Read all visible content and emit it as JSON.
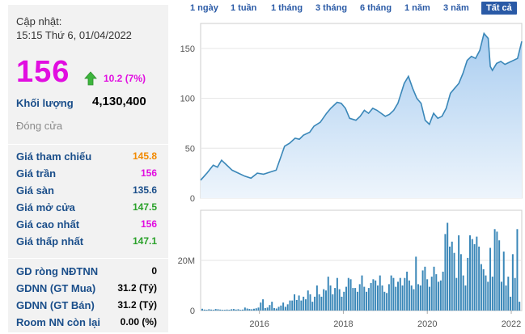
{
  "info": {
    "update_label": "Cập nhật:",
    "update_time": "15:15 Thứ 6, 01/04/2022",
    "price": "156",
    "change": "10.2 (7%)",
    "volume_label": "Khối lượng",
    "volume_value": "4,130,400",
    "status": "Đóng cửa"
  },
  "prices": [
    {
      "label": "Giá tham chiếu",
      "value": "145.8",
      "color": "#f28a00"
    },
    {
      "label": "Giá trần",
      "value": "156",
      "color": "#e10ee0"
    },
    {
      "label": "Giá sàn",
      "value": "135.6",
      "color": "#1a4e8a"
    },
    {
      "label": "Giá mở cửa",
      "value": "147.5",
      "color": "#2aa12a"
    },
    {
      "label": "Giá cao nhất",
      "value": "156",
      "color": "#e10ee0"
    },
    {
      "label": "Giá thấp nhất",
      "value": "147.1",
      "color": "#2aa12a"
    }
  ],
  "foreign": [
    {
      "label": "GD ròng NĐTNN",
      "value": "0"
    },
    {
      "label": "GDNN (GT Mua)",
      "value": "31.2 (Tỷ)"
    },
    {
      "label": "GDNN (GT Bán)",
      "value": "31.2 (Tỷ)"
    },
    {
      "label": "Room NN còn lại",
      "value": "0.00 (%)"
    }
  ],
  "ranges": [
    "1 ngày",
    "1 tuần",
    "1 tháng",
    "3 tháng",
    "6 tháng",
    "1 năm",
    "3 năm",
    "Tất cả"
  ],
  "active_range": "Tất cả",
  "chart_data": [
    {
      "type": "area",
      "name": "price",
      "x_range": [
        2014.6,
        2022.25
      ],
      "ylim": [
        0,
        175
      ],
      "yticks": [
        0,
        50,
        100,
        150
      ],
      "color": "#3a87b8",
      "x": [
        2014.6,
        2014.75,
        2014.9,
        2015.0,
        2015.1,
        2015.2,
        2015.35,
        2015.5,
        2015.65,
        2015.8,
        2015.95,
        2016.1,
        2016.25,
        2016.4,
        2016.5,
        2016.6,
        2016.72,
        2016.85,
        2016.95,
        2017.05,
        2017.2,
        2017.3,
        2017.45,
        2017.6,
        2017.7,
        2017.85,
        2017.95,
        2018.05,
        2018.15,
        2018.3,
        2018.4,
        2018.5,
        2018.6,
        2018.7,
        2018.8,
        2018.9,
        2019.0,
        2019.1,
        2019.2,
        2019.3,
        2019.45,
        2019.55,
        2019.65,
        2019.75,
        2019.85,
        2019.95,
        2020.05,
        2020.15,
        2020.25,
        2020.35,
        2020.45,
        2020.55,
        2020.65,
        2020.75,
        2020.85,
        2020.95,
        2021.05,
        2021.15,
        2021.25,
        2021.35,
        2021.45,
        2021.5,
        2021.55,
        2021.65,
        2021.75,
        2021.85,
        2021.95,
        2022.05,
        2022.15,
        2022.25
      ],
      "y": [
        18,
        25,
        33,
        31,
        38,
        34,
        28,
        25,
        22,
        20,
        25,
        24,
        26,
        28,
        40,
        52,
        55,
        60,
        59,
        63,
        66,
        72,
        76,
        85,
        90,
        96,
        95,
        90,
        80,
        78,
        82,
        88,
        85,
        90,
        88,
        85,
        82,
        84,
        88,
        95,
        115,
        122,
        110,
        100,
        95,
        78,
        74,
        85,
        80,
        82,
        90,
        105,
        110,
        115,
        125,
        138,
        142,
        140,
        148,
        165,
        160,
        132,
        128,
        135,
        137,
        134,
        136,
        138,
        140,
        157
      ]
    },
    {
      "type": "bar",
      "name": "volume",
      "x_range": [
        2014.6,
        2022.25
      ],
      "ylim": [
        0,
        40
      ],
      "yticks": [
        0,
        20
      ],
      "ytick_labels": [
        "0",
        "20M"
      ],
      "xticks": [
        2016,
        2018,
        2020,
        2022
      ],
      "color": "#3a87b8",
      "values": [
        0.7,
        0.4,
        0.3,
        0.5,
        0.4,
        0.3,
        0.6,
        0.5,
        0.4,
        0.3,
        0.3,
        0.4,
        0.3,
        0.5,
        0.6,
        0.4,
        0.5,
        0.3,
        0.4,
        1.2,
        0.8,
        0.6,
        0.5,
        0.7,
        0.9,
        1.2,
        3.2,
        4.5,
        1.0,
        1.2,
        2.2,
        3.5,
        1.0,
        0.8,
        1.5,
        2.0,
        3.2,
        1.5,
        2.5,
        4.0,
        4.0,
        6.5,
        4.2,
        6.0,
        4.0,
        5.5,
        4.5,
        8.0,
        6.5,
        3.5,
        5.5,
        10.0,
        6.5,
        5.5,
        8.5,
        8.0,
        13.5,
        10.0,
        6.5,
        9.0,
        13.0,
        8.5,
        5.5,
        7.5,
        9.5,
        13.0,
        12.5,
        9.0,
        9.0,
        7.5,
        10.5,
        14.0,
        9.5,
        7.5,
        9.0,
        11.0,
        12.5,
        12.0,
        10.0,
        14.0,
        10.0,
        7.5,
        7.0,
        10.5,
        14.0,
        13.0,
        9.5,
        11.5,
        13.0,
        10.0,
        13.0,
        15.5,
        12.0,
        10.0,
        8.5,
        21.5,
        10.5,
        10.0,
        16.0,
        17.5,
        12.5,
        9.5,
        13.5,
        17.5,
        14.5,
        11.5,
        12.0,
        15.5,
        30.5,
        35.0,
        25.5,
        27.5,
        23.0,
        13.0,
        30.0,
        22.5,
        14.0,
        10.0,
        21.0,
        30.0,
        28.5,
        26.5,
        29.5,
        25.5,
        18.5,
        16.5,
        14.0,
        11.5,
        25.0,
        13.5,
        32.5,
        31.5,
        28.0,
        11.5,
        23.5,
        10.0,
        13.5,
        5.5,
        22.5,
        13.0,
        32.5,
        3.5
      ]
    }
  ]
}
